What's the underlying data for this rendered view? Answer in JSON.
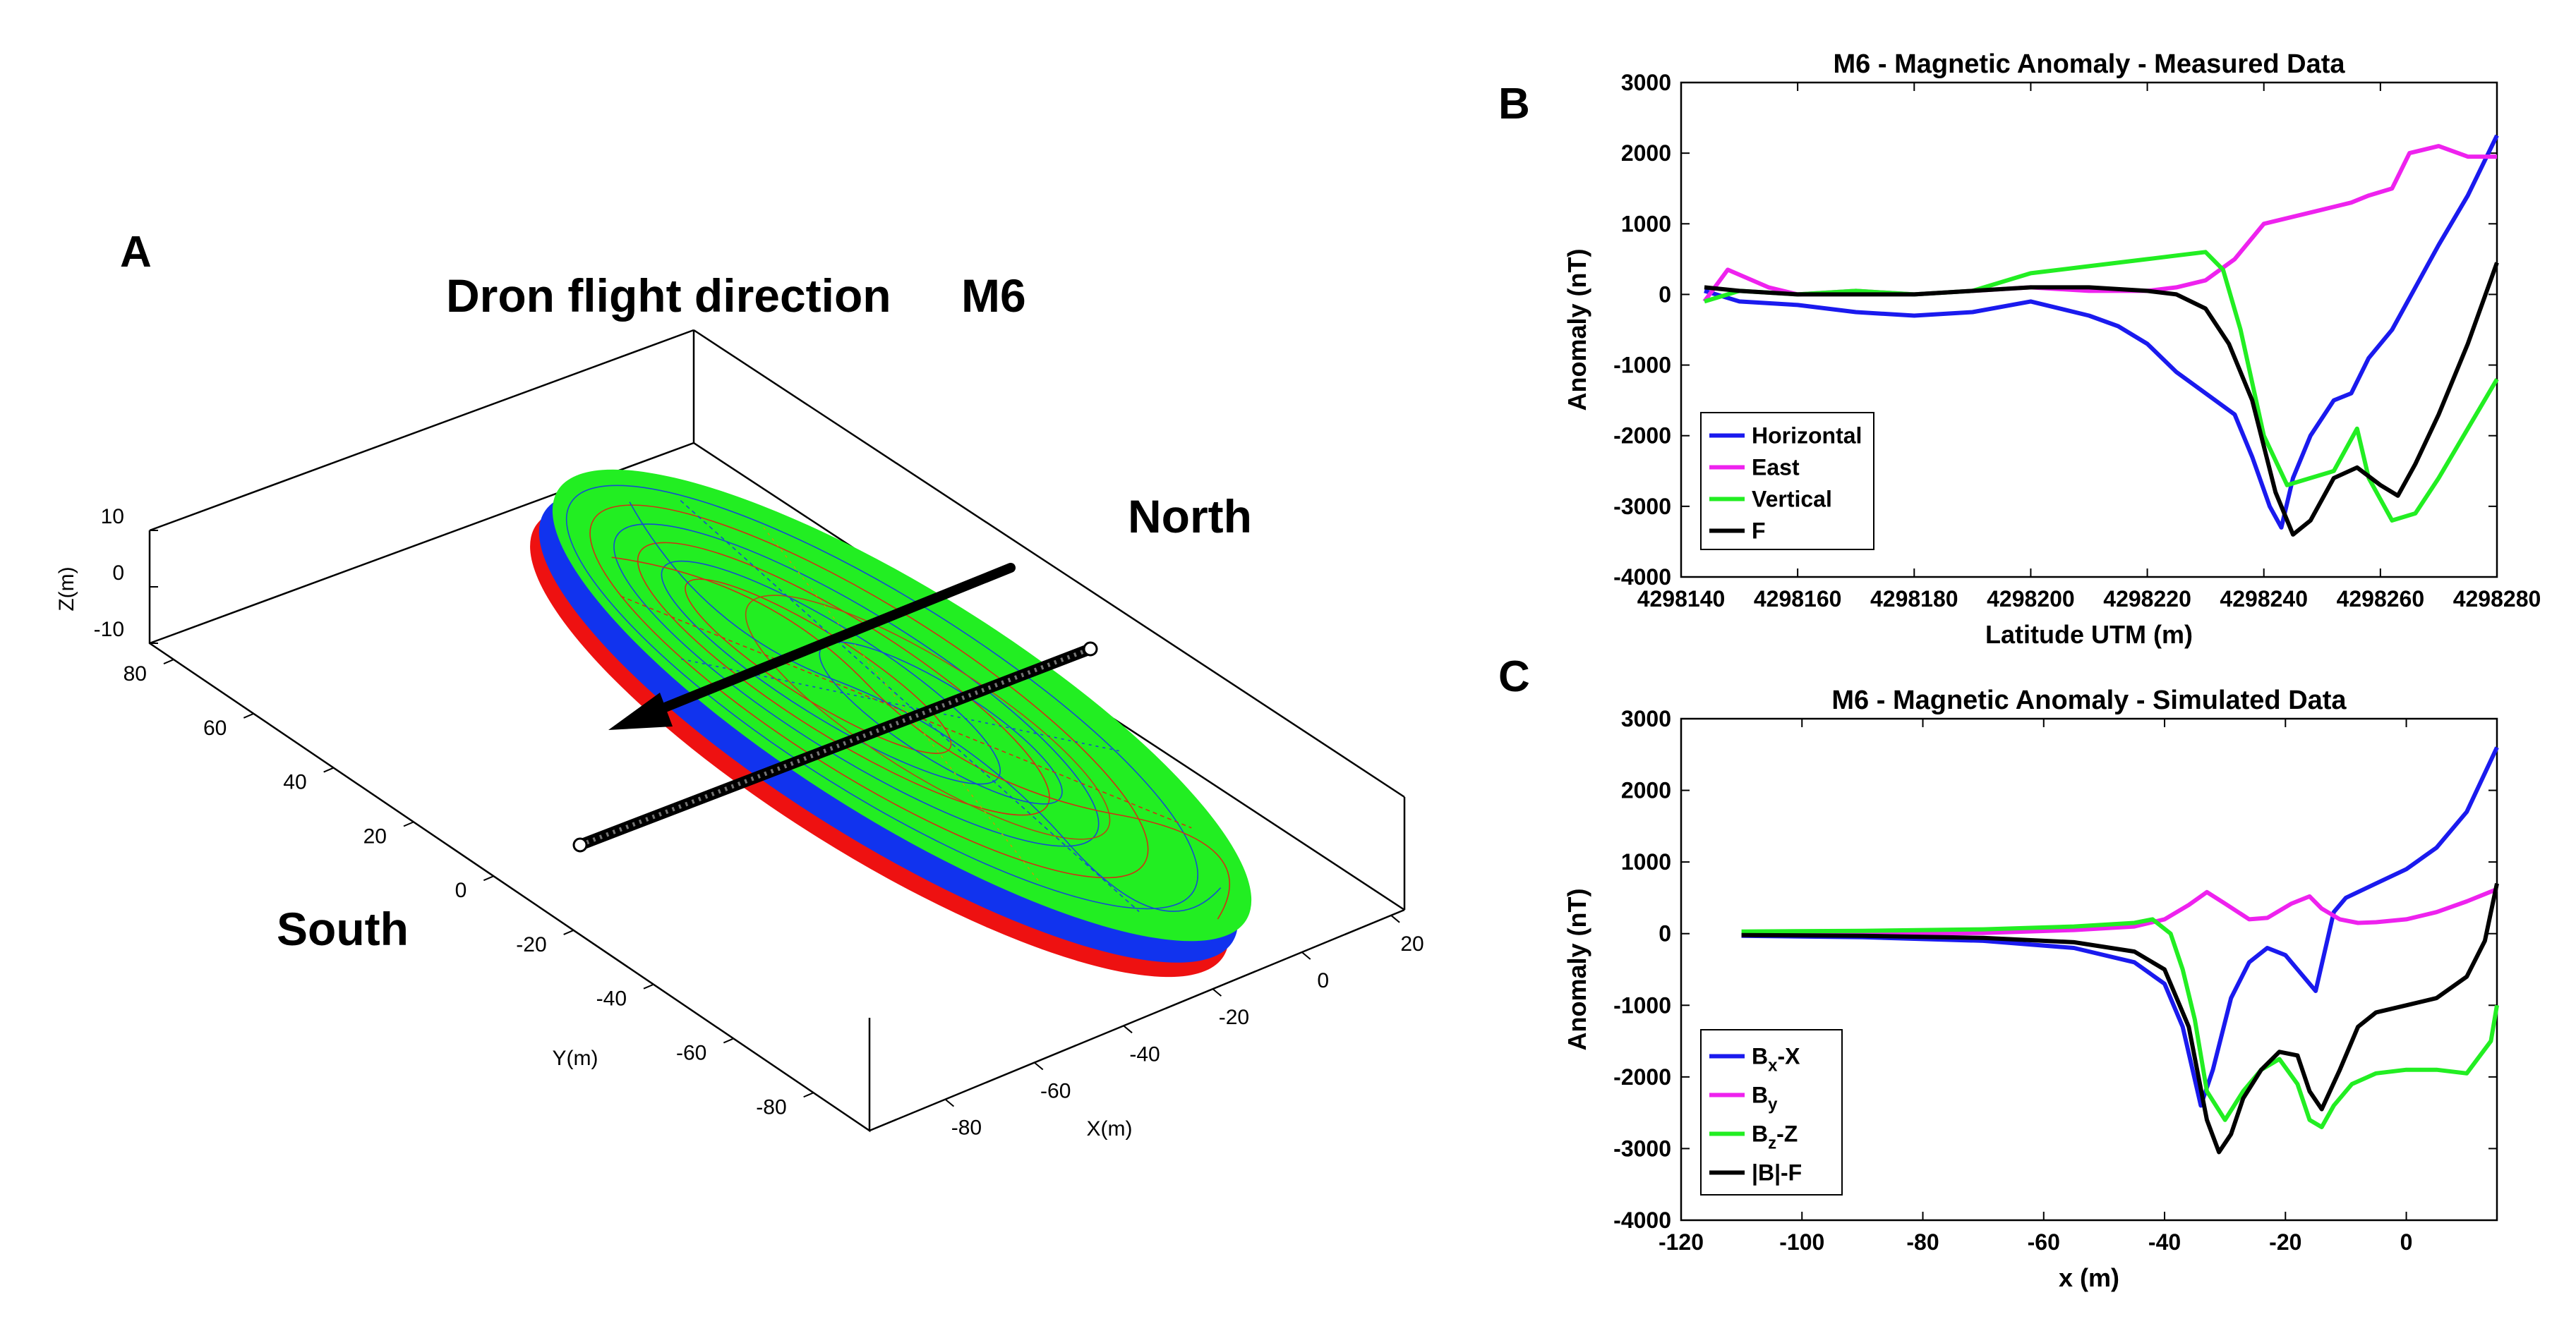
{
  "panel_a": {
    "panel_label": "A",
    "annotation_flight": "Dron flight direction",
    "annotation_model": "M6",
    "annotation_north": "North",
    "annotation_south": "South",
    "zlabel": "Z(m)",
    "ylabel": "Y(m)",
    "xlabel": "X(m)",
    "z_ticks": [
      "10",
      "0",
      "-10"
    ],
    "y_ticks": [
      "80",
      "60",
      "40",
      "20",
      "0",
      "-20",
      "-40",
      "-60",
      "-80"
    ],
    "x_ticks": [
      "20",
      "0",
      "-20",
      "-40",
      "-60",
      "-80"
    ],
    "colors": {
      "disk_top": "#22ee22",
      "disk_blue": "#1133ee",
      "disk_red": "#ee1111",
      "arrow": "#000000"
    }
  },
  "panel_b": {
    "panel_label": "B"
  },
  "panel_c": {
    "panel_label": "C"
  },
  "chart_data": [
    {
      "type": "line",
      "title": "M6 - Magnetic Anomaly - Measured Data",
      "xlabel": "Latitude UTM (m)",
      "ylabel": "Anomaly (nT)",
      "xlim": [
        4298140,
        4298280
      ],
      "ylim": [
        -4000,
        3000
      ],
      "x_ticks": [
        "4298140",
        "4298160",
        "4298180",
        "4298200",
        "4298220",
        "4298240",
        "4298260",
        "4298280"
      ],
      "y_ticks": [
        "3000",
        "2000",
        "1000",
        "0",
        "-1000",
        "-2000",
        "-3000",
        "-4000"
      ],
      "legend_position": "bottom-left",
      "series": [
        {
          "name": "Horizontal",
          "color": "#1a1aee",
          "x": [
            4298144,
            4298150,
            4298160,
            4298170,
            4298180,
            4298190,
            4298200,
            4298210,
            4298215,
            4298220,
            4298225,
            4298230,
            4298235,
            4298238,
            4298241,
            4298243,
            4298245,
            4298248,
            4298252,
            4298255,
            4298258,
            4298262,
            4298266,
            4298270,
            4298275,
            4298280
          ],
          "y": [
            50,
            -100,
            -150,
            -250,
            -300,
            -250,
            -100,
            -300,
            -450,
            -700,
            -1100,
            -1400,
            -1700,
            -2300,
            -3000,
            -3300,
            -2600,
            -2000,
            -1500,
            -1400,
            -900,
            -500,
            100,
            700,
            1400,
            2250
          ]
        },
        {
          "name": "East",
          "color": "#ee22ee",
          "x": [
            4298144,
            4298148,
            4298155,
            4298160,
            4298170,
            4298180,
            4298190,
            4298200,
            4298210,
            4298220,
            4298225,
            4298230,
            4298235,
            4298240,
            4298245,
            4298250,
            4298255,
            4298258,
            4298262,
            4298265,
            4298270,
            4298275,
            4298280
          ],
          "y": [
            -100,
            350,
            100,
            0,
            50,
            0,
            50,
            100,
            50,
            50,
            100,
            200,
            500,
            1000,
            1100,
            1200,
            1300,
            1400,
            1500,
            2000,
            2100,
            1950,
            1950
          ]
        },
        {
          "name": "Vertical",
          "color": "#22ee22",
          "x": [
            4298144,
            4298150,
            4298160,
            4298170,
            4298180,
            4298190,
            4298200,
            4298210,
            4298220,
            4298225,
            4298230,
            4298233,
            4298236,
            4298240,
            4298244,
            4298248,
            4298252,
            4298256,
            4298258,
            4298262,
            4298266,
            4298270,
            4298275,
            4298280
          ],
          "y": [
            -100,
            50,
            0,
            50,
            0,
            50,
            300,
            400,
            500,
            550,
            600,
            350,
            -500,
            -2000,
            -2700,
            -2600,
            -2500,
            -1900,
            -2600,
            -3200,
            -3100,
            -2600,
            -1900,
            -1200
          ]
        },
        {
          "name": "F",
          "color": "#000000",
          "x": [
            4298144,
            4298150,
            4298160,
            4298170,
            4298180,
            4298190,
            4298200,
            4298210,
            4298220,
            4298225,
            4298230,
            4298234,
            4298238,
            4298242,
            4298245,
            4298248,
            4298252,
            4298256,
            4298260,
            4298263,
            4298266,
            4298270,
            4298275,
            4298280
          ],
          "y": [
            100,
            50,
            0,
            0,
            0,
            50,
            100,
            100,
            50,
            0,
            -200,
            -700,
            -1500,
            -2800,
            -3400,
            -3200,
            -2600,
            -2450,
            -2700,
            -2850,
            -2400,
            -1700,
            -700,
            450
          ]
        }
      ]
    },
    {
      "type": "line",
      "title": "M6 - Magnetic Anomaly - Simulated Data",
      "xlabel": "x (m)",
      "ylabel": "Anomaly (nT)",
      "xlim": [
        -120,
        15
      ],
      "ylim": [
        -4000,
        3000
      ],
      "x_ticks": [
        "-120",
        "-100",
        "-80",
        "-60",
        "-40",
        "-20",
        "0"
      ],
      "y_ticks": [
        "3000",
        "2000",
        "1000",
        "0",
        "-1000",
        "-2000",
        "-3000",
        "-4000"
      ],
      "legend_position": "bottom-left",
      "series": [
        {
          "name_main": "B",
          "name_sub": "x",
          "name_suffix": "-X",
          "color": "#1a1aee",
          "x": [
            -110,
            -90,
            -70,
            -55,
            -45,
            -40,
            -37,
            -34,
            -32,
            -29,
            -26,
            -23,
            -20,
            -18,
            -15,
            -12,
            -10,
            -5,
            0,
            5,
            10,
            15
          ],
          "y": [
            -30,
            -50,
            -100,
            -200,
            -400,
            -700,
            -1300,
            -2400,
            -1900,
            -900,
            -400,
            -200,
            -300,
            -500,
            -800,
            300,
            500,
            700,
            900,
            1200,
            1700,
            2600
          ]
        },
        {
          "name_main": "B",
          "name_sub": "y",
          "name_suffix": "",
          "color": "#ee22ee",
          "x": [
            -110,
            -90,
            -70,
            -55,
            -45,
            -40,
            -36,
            -33,
            -30,
            -26,
            -23,
            -19,
            -16,
            -14,
            -11,
            -8,
            -5,
            0,
            5,
            10,
            15
          ],
          "y": [
            -20,
            -10,
            10,
            50,
            100,
            200,
            400,
            580,
            420,
            200,
            220,
            420,
            520,
            350,
            200,
            150,
            160,
            200,
            300,
            450,
            620
          ]
        },
        {
          "name_main": "B",
          "name_sub": "z",
          "name_suffix": "-Z",
          "color": "#22ee22",
          "x": [
            -110,
            -90,
            -70,
            -55,
            -45,
            -42,
            -39,
            -37,
            -35,
            -33,
            -30,
            -27,
            -24,
            -21,
            -18,
            -16,
            -14,
            -12,
            -9,
            -5,
            0,
            5,
            10,
            14,
            15
          ],
          "y": [
            30,
            40,
            60,
            100,
            150,
            200,
            0,
            -500,
            -1200,
            -2200,
            -2600,
            -2200,
            -1900,
            -1750,
            -2100,
            -2600,
            -2700,
            -2400,
            -2100,
            -1950,
            -1900,
            -1900,
            -1950,
            -1500,
            -1000
          ]
        },
        {
          "name_main": "|B|-F",
          "name_sub": "",
          "name_suffix": "",
          "color": "#000000",
          "x": [
            -110,
            -90,
            -70,
            -55,
            -45,
            -40,
            -36,
            -33,
            -31,
            -29,
            -27,
            -24,
            -21,
            -18,
            -16,
            -14,
            -11,
            -8,
            -5,
            0,
            5,
            10,
            13,
            15
          ],
          "y": [
            -20,
            -30,
            -60,
            -120,
            -250,
            -500,
            -1300,
            -2600,
            -3050,
            -2800,
            -2300,
            -1900,
            -1650,
            -1700,
            -2200,
            -2450,
            -1900,
            -1300,
            -1100,
            -1000,
            -900,
            -600,
            -100,
            700
          ]
        }
      ]
    }
  ]
}
